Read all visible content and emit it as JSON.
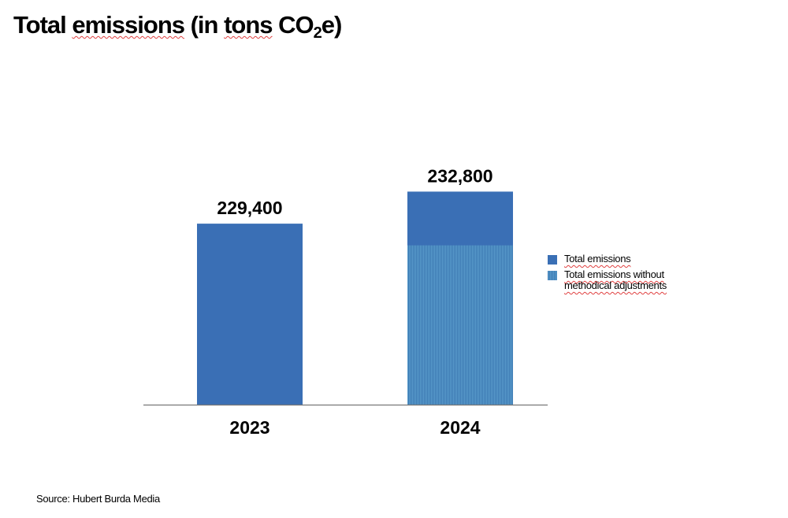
{
  "title": {
    "main": "Total emissions (in tons CO",
    "subscript": "2",
    "suffix": "e)"
  },
  "chart_data": {
    "type": "bar",
    "title": "Total emissions (in tons CO2e)",
    "categories": [
      "2023",
      "2024"
    ],
    "series": [
      {
        "name": "Total emissions",
        "values": [
          229400,
          232800
        ],
        "color": "#3a6fb5",
        "pattern": "solid"
      },
      {
        "name": "Total emissions without methodical adjustments",
        "values": [
          null,
          227100
        ],
        "color": "#4a8cc2",
        "pattern": "vertical-stripes",
        "estimated": true
      }
    ],
    "data_labels": [
      "229,400",
      "232,800"
    ],
    "xlabel": "",
    "ylabel": "",
    "ylim": [
      210200,
      233000
    ],
    "grid": false,
    "legend_position": "right"
  },
  "legend": [
    {
      "label": "Total emissions",
      "pattern": "solid"
    },
    {
      "label": "Total emissions without methodical adjustments",
      "pattern": "hatch"
    }
  ],
  "source": "Source: Hubert Burda Media"
}
